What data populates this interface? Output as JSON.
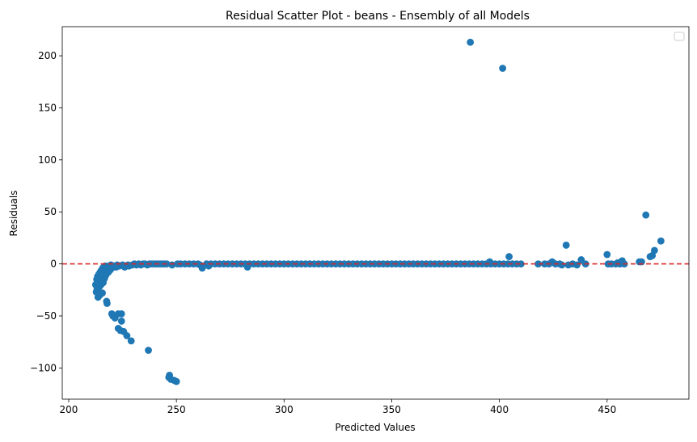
{
  "chart_data": {
    "type": "scatter",
    "title": "Residual Scatter Plot - beans  - Ensembly of all Models",
    "xlabel": "Predicted Values",
    "ylabel": "Residuals",
    "xlim": [
      197,
      488
    ],
    "ylim": [
      -130,
      228
    ],
    "xticks": [
      200,
      250,
      300,
      350,
      400,
      450
    ],
    "yticks": [
      -100,
      -50,
      0,
      50,
      100,
      150,
      200
    ],
    "ytick_labels": [
      "−100",
      "−50",
      "0",
      "50",
      "100",
      "150",
      "200"
    ],
    "grid": false,
    "legend": "top-right, empty",
    "reference_line": {
      "y": 0,
      "style": "dashed",
      "color": "#d62728"
    },
    "marker_color": "#1f77b4",
    "points": [
      [
        212.5,
        -20
      ],
      [
        212.8,
        -27
      ],
      [
        213.0,
        -15
      ],
      [
        213.2,
        -24
      ],
      [
        213.4,
        -12
      ],
      [
        213.6,
        -32
      ],
      [
        213.8,
        -18
      ],
      [
        214.0,
        -10
      ],
      [
        214.2,
        -22
      ],
      [
        214.4,
        -30
      ],
      [
        214.6,
        -8
      ],
      [
        214.8,
        -14
      ],
      [
        215.0,
        -20
      ],
      [
        215.2,
        -6
      ],
      [
        215.4,
        -12
      ],
      [
        215.6,
        -28
      ],
      [
        215.8,
        -4
      ],
      [
        216.0,
        -18
      ],
      [
        216.2,
        -9
      ],
      [
        216.4,
        -3
      ],
      [
        216.6,
        -14
      ],
      [
        216.8,
        -7
      ],
      [
        217.0,
        -2
      ],
      [
        217.2,
        -11
      ],
      [
        217.4,
        -5
      ],
      [
        217.6,
        -36
      ],
      [
        217.8,
        -38
      ],
      [
        218.0,
        -3
      ],
      [
        218.4,
        -8
      ],
      [
        218.8,
        -2
      ],
      [
        219.2,
        -6
      ],
      [
        219.6,
        -1
      ],
      [
        220.0,
        -4
      ],
      [
        220.0,
        -48
      ],
      [
        220.5,
        -50
      ],
      [
        221.0,
        -2
      ],
      [
        221.5,
        -52
      ],
      [
        222.0,
        -3
      ],
      [
        222.5,
        -1
      ],
      [
        223.0,
        -48
      ],
      [
        223.0,
        -62
      ],
      [
        223.5,
        -2
      ],
      [
        224.0,
        -64
      ],
      [
        224.5,
        -48
      ],
      [
        224.5,
        -55
      ],
      [
        225.0,
        -1
      ],
      [
        225.5,
        -65
      ],
      [
        226.0,
        -3
      ],
      [
        227.0,
        -69
      ],
      [
        227.5,
        -1
      ],
      [
        228.0,
        -2
      ],
      [
        229.0,
        -74
      ],
      [
        229.5,
        -1
      ],
      [
        230.5,
        0
      ],
      [
        231.5,
        -1
      ],
      [
        232.5,
        0
      ],
      [
        233.5,
        -1
      ],
      [
        234.5,
        0
      ],
      [
        235.5,
        0
      ],
      [
        236.5,
        -1
      ],
      [
        237.0,
        -83
      ],
      [
        237.5,
        0
      ],
      [
        238.5,
        0
      ],
      [
        239.5,
        0
      ],
      [
        240.5,
        0
      ],
      [
        241.5,
        0
      ],
      [
        242.5,
        0
      ],
      [
        243.5,
        0
      ],
      [
        244.5,
        0
      ],
      [
        245.5,
        0
      ],
      [
        246.5,
        -109
      ],
      [
        246.8,
        -107
      ],
      [
        247.5,
        -111
      ],
      [
        248.0,
        -1
      ],
      [
        249.0,
        -112
      ],
      [
        250.0,
        -113
      ],
      [
        250.5,
        0
      ],
      [
        252,
        0
      ],
      [
        254,
        0
      ],
      [
        256,
        0
      ],
      [
        258,
        0
      ],
      [
        260,
        0
      ],
      [
        261,
        -1
      ],
      [
        262,
        -4
      ],
      [
        264,
        0
      ],
      [
        265,
        -2
      ],
      [
        266,
        0
      ],
      [
        268,
        0
      ],
      [
        270,
        0
      ],
      [
        272,
        0
      ],
      [
        274,
        0
      ],
      [
        276,
        0
      ],
      [
        278,
        0
      ],
      [
        280,
        0
      ],
      [
        282,
        0
      ],
      [
        283,
        -3
      ],
      [
        284,
        0
      ],
      [
        286,
        0
      ],
      [
        288,
        0
      ],
      [
        290,
        0
      ],
      [
        292,
        0
      ],
      [
        294,
        0
      ],
      [
        296,
        0
      ],
      [
        298,
        0
      ],
      [
        300,
        0
      ],
      [
        302,
        0
      ],
      [
        304,
        0
      ],
      [
        306,
        0
      ],
      [
        308,
        0
      ],
      [
        310,
        0
      ],
      [
        312,
        0
      ],
      [
        314,
        0
      ],
      [
        316,
        0
      ],
      [
        318,
        0
      ],
      [
        320,
        0
      ],
      [
        322,
        0
      ],
      [
        324,
        0
      ],
      [
        326,
        0
      ],
      [
        328,
        0
      ],
      [
        330,
        0
      ],
      [
        332,
        0
      ],
      [
        334,
        0
      ],
      [
        336,
        0
      ],
      [
        338,
        0
      ],
      [
        340,
        0
      ],
      [
        342,
        0
      ],
      [
        344,
        0
      ],
      [
        346,
        0
      ],
      [
        348,
        0
      ],
      [
        350,
        0
      ],
      [
        352,
        0
      ],
      [
        354,
        0
      ],
      [
        356,
        0
      ],
      [
        358,
        0
      ],
      [
        360,
        0
      ],
      [
        362,
        0
      ],
      [
        364,
        0
      ],
      [
        366,
        0
      ],
      [
        368,
        0
      ],
      [
        370,
        0
      ],
      [
        372,
        0
      ],
      [
        374,
        0
      ],
      [
        376,
        0
      ],
      [
        378,
        0
      ],
      [
        380,
        0
      ],
      [
        382,
        0
      ],
      [
        384,
        0
      ],
      [
        386,
        0
      ],
      [
        386.5,
        213
      ],
      [
        388,
        0
      ],
      [
        390,
        0
      ],
      [
        392,
        0
      ],
      [
        394,
        0
      ],
      [
        395.5,
        2
      ],
      [
        396,
        0
      ],
      [
        398,
        0
      ],
      [
        400,
        0
      ],
      [
        401.5,
        188
      ],
      [
        402,
        0
      ],
      [
        404,
        0
      ],
      [
        404.5,
        7
      ],
      [
        406,
        0
      ],
      [
        408,
        0
      ],
      [
        410,
        0
      ],
      [
        418,
        0
      ],
      [
        421,
        0
      ],
      [
        423,
        0
      ],
      [
        424.5,
        2
      ],
      [
        426,
        0
      ],
      [
        428,
        0
      ],
      [
        429,
        -1
      ],
      [
        431,
        18
      ],
      [
        432,
        -1
      ],
      [
        434,
        0
      ],
      [
        436,
        -1
      ],
      [
        438,
        4
      ],
      [
        440,
        0
      ],
      [
        450,
        9
      ],
      [
        450.5,
        0
      ],
      [
        452,
        0
      ],
      [
        454,
        0
      ],
      [
        455,
        1
      ],
      [
        456,
        0
      ],
      [
        457,
        3
      ],
      [
        458,
        0
      ],
      [
        465,
        2
      ],
      [
        466,
        2
      ],
      [
        468,
        47
      ],
      [
        470,
        7
      ],
      [
        471,
        8
      ],
      [
        472,
        13
      ],
      [
        475,
        22
      ]
    ]
  }
}
